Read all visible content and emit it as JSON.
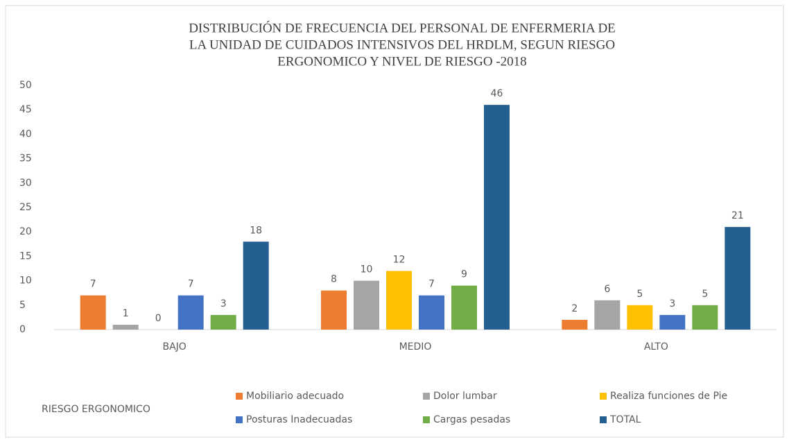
{
  "chart_data": {
    "type": "bar",
    "title": [
      "DISTRIBUCIÓN DE FRECUENCIA DEL PERSONAL DE ENFERMERIA DE",
      "LA UNIDAD DE CUIDADOS INTENSIVOS DEL HRDLM, SEGUN RIESGO",
      "ERGONOMICO Y NIVEL DE RIESGO -2018"
    ],
    "legend_title": "RIESGO ERGONOMICO",
    "categories": [
      "BAJO",
      "MEDIO",
      "ALTO"
    ],
    "series": [
      {
        "name": "Mobiliario adecuado",
        "color": "#ed7d31",
        "values": [
          7,
          8,
          2
        ]
      },
      {
        "name": "Dolor lumbar",
        "color": "#a5a5a5",
        "values": [
          1,
          10,
          6
        ]
      },
      {
        "name": "Realiza funciones de Pie",
        "color": "#ffc000",
        "values": [
          0,
          12,
          5
        ]
      },
      {
        "name": "Posturas Inadecuadas",
        "color": "#4472c4",
        "values": [
          7,
          7,
          3
        ]
      },
      {
        "name": "Cargas pesadas",
        "color": "#70ad47",
        "values": [
          3,
          9,
          5
        ]
      },
      {
        "name": "TOTAL",
        "color": "#255e91",
        "values": [
          18,
          46,
          21
        ]
      }
    ],
    "ylim": [
      0,
      50
    ],
    "yticks": [
      0,
      5,
      10,
      15,
      20,
      25,
      30,
      35,
      40,
      45,
      50
    ],
    "grid": false,
    "legend": "bottom"
  }
}
